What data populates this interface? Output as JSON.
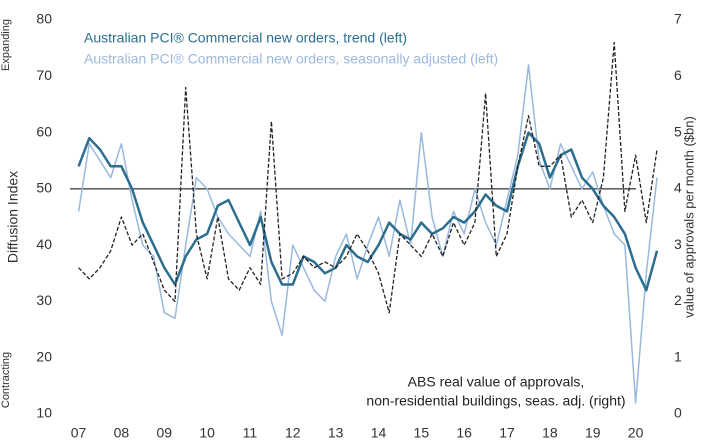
{
  "chart_data": {
    "type": "line",
    "ylabel": "Diffusion Index",
    "y2label": "value of approvals per month ($bn)",
    "y_notes": {
      "top": "Expanding",
      "bottom": "Contracting"
    },
    "hline": 50,
    "grid": false,
    "xlim": [
      2006.8,
      2020.85
    ],
    "xticks": [
      {
        "value": 2007,
        "label": "07"
      },
      {
        "value": 2008,
        "label": "08"
      },
      {
        "value": 2009,
        "label": "09"
      },
      {
        "value": 2010,
        "label": "10"
      },
      {
        "value": 2011,
        "label": "11"
      },
      {
        "value": 2012,
        "label": "12"
      },
      {
        "value": 2013,
        "label": "13"
      },
      {
        "value": 2014,
        "label": "14"
      },
      {
        "value": 2015,
        "label": "15"
      },
      {
        "value": 2016,
        "label": "16"
      },
      {
        "value": 2017,
        "label": "17"
      },
      {
        "value": 2018,
        "label": "18"
      },
      {
        "value": 2019,
        "label": "19"
      },
      {
        "value": 2020,
        "label": "20"
      }
    ],
    "ylim": [
      10,
      80
    ],
    "yticks": [
      10,
      20,
      30,
      40,
      50,
      60,
      70,
      80
    ],
    "y2lim": [
      0,
      7
    ],
    "y2ticks": [
      0,
      1,
      2,
      3,
      4,
      5,
      6,
      7
    ],
    "x": [
      2007,
      2007.25,
      2007.5,
      2007.75,
      2008,
      2008.25,
      2008.5,
      2008.75,
      2009,
      2009.25,
      2009.5,
      2009.75,
      2010,
      2010.25,
      2010.5,
      2010.75,
      2011,
      2011.25,
      2011.5,
      2011.75,
      2012,
      2012.25,
      2012.5,
      2012.75,
      2013,
      2013.25,
      2013.5,
      2013.75,
      2014,
      2014.25,
      2014.5,
      2014.75,
      2015,
      2015.25,
      2015.5,
      2015.75,
      2016,
      2016.25,
      2016.5,
      2016.75,
      2017,
      2017.25,
      2017.5,
      2017.75,
      2018,
      2018.25,
      2018.5,
      2018.75,
      2019,
      2019.25,
      2019.5,
      2019.75,
      2020,
      2020.25,
      2020.5
    ],
    "series": [
      {
        "name": "Australian PCI® Commercial new orders, seasonally adjusted (left)",
        "color": "#9bb8dd",
        "width": 1.5,
        "dash": false,
        "values": [
          46,
          58,
          55,
          52,
          58,
          48,
          40,
          38,
          28,
          27,
          40,
          52,
          50,
          45,
          42,
          40,
          38,
          46,
          30,
          24,
          40,
          36,
          32,
          30,
          38,
          42,
          34,
          40,
          45,
          38,
          48,
          40,
          60,
          45,
          38,
          46,
          42,
          50,
          44,
          40,
          48,
          56,
          72,
          55,
          50,
          58,
          54,
          50,
          53,
          47,
          42,
          40,
          12,
          35,
          52
        ]
      },
      {
        "name": "Australian PCI® Commercial new orders, trend (left)",
        "color": "#2b6e8f",
        "width": 2.5,
        "dash": false,
        "values": [
          54,
          59,
          57,
          54,
          54,
          50,
          44,
          40,
          36,
          33,
          38,
          41,
          42,
          47,
          48,
          44,
          40,
          45,
          37,
          33,
          33,
          38,
          37,
          35,
          36,
          40,
          38,
          37,
          40,
          44,
          42,
          41,
          44,
          42,
          43,
          45,
          44,
          46,
          49,
          47,
          46,
          54,
          60,
          58,
          52,
          56,
          57,
          52,
          50,
          47,
          45,
          42,
          36,
          32,
          39
        ]
      },
      {
        "name": [
          "ABS real value of approvals,",
          "non-residential buildings, seas. adj. (right)"
        ],
        "color": "#222222",
        "width": 1.3,
        "dash": true,
        "axis": "y2",
        "values": [
          2.6,
          2.4,
          2.6,
          2.9,
          3.5,
          3.0,
          3.2,
          2.7,
          2.2,
          2.0,
          5.8,
          3.2,
          2.4,
          3.5,
          2.4,
          2.2,
          2.6,
          2.3,
          5.2,
          2.4,
          2.5,
          2.8,
          2.6,
          2.7,
          2.6,
          2.8,
          3.2,
          2.9,
          2.5,
          1.8,
          3.2,
          3.0,
          2.8,
          3.2,
          2.8,
          3.4,
          3.0,
          3.4,
          5.7,
          2.8,
          3.2,
          4.4,
          5.3,
          4.4,
          4.4,
          4.6,
          3.5,
          3.8,
          3.4,
          4.2,
          6.6,
          3.6,
          4.6,
          3.4,
          4.7
        ]
      }
    ]
  }
}
